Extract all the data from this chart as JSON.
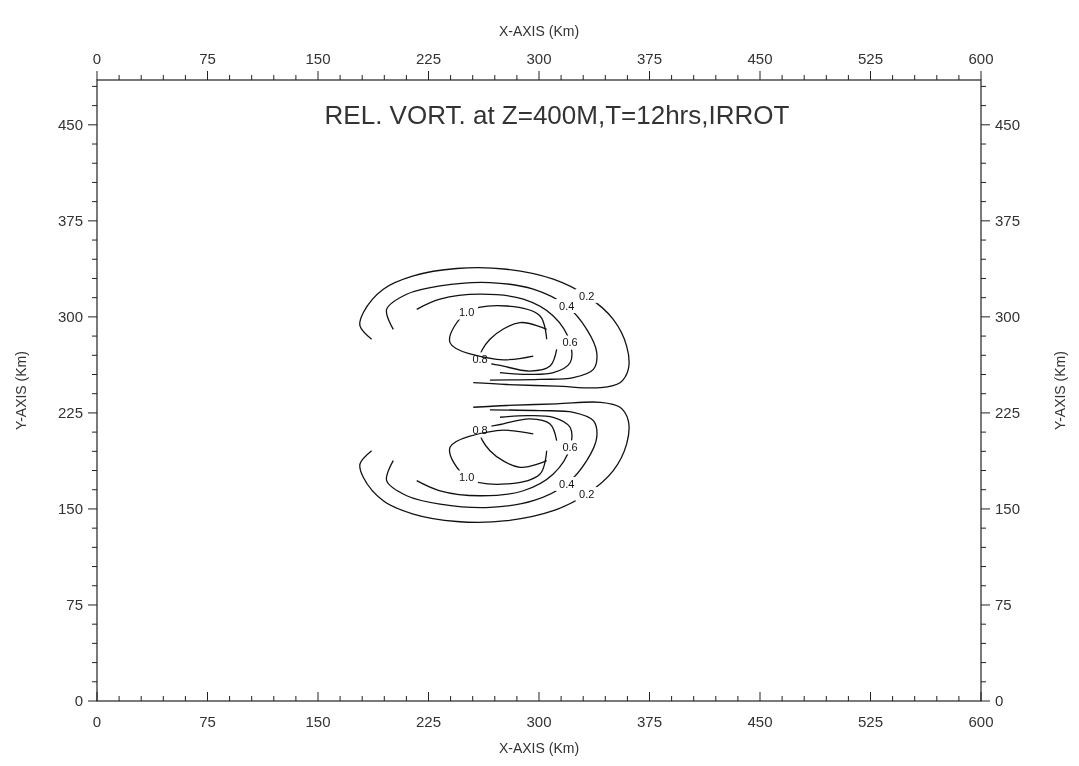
{
  "chart_data": {
    "type": "line",
    "title": "REL. VORT. at Z=400M,T=12hrs,IRROT",
    "xlabel": "X-AXIS (Km)",
    "x2label": "X-AXIS (Km)",
    "ylabel": "Y-AXIS (Km)",
    "y2label": "Y-AXIS (Km)",
    "xlim": [
      0,
      600
    ],
    "x2lim": [
      0,
      600
    ],
    "ylim": [
      0,
      485
    ],
    "y2lim": [
      0,
      485
    ],
    "xticks": [
      0,
      {
        "value": 15,
        "label": null
      },
      {
        "value": 30,
        "label": null
      },
      {
        "value": 45,
        "label": null
      },
      {
        "value": 60,
        "label": null
      },
      75,
      {
        "value": 90,
        "label": null
      },
      {
        "value": 105,
        "label": null
      },
      {
        "value": 120,
        "label": null
      },
      {
        "value": 135,
        "label": null
      },
      150,
      {
        "value": 165,
        "label": null
      },
      {
        "value": 180,
        "label": null
      },
      {
        "value": 195,
        "label": null
      },
      {
        "value": 210,
        "label": null
      },
      225,
      {
        "value": 240,
        "label": null
      },
      {
        "value": 255,
        "label": null
      },
      {
        "value": 270,
        "label": null
      },
      {
        "value": 285,
        "label": null
      },
      300,
      {
        "value": 315,
        "label": null
      },
      {
        "value": 330,
        "label": null
      },
      {
        "value": 345,
        "label": null
      },
      {
        "value": 360,
        "label": null
      },
      375,
      {
        "value": 390,
        "label": null
      },
      {
        "value": 405,
        "label": null
      },
      {
        "value": 420,
        "label": null
      },
      {
        "value": 435,
        "label": null
      },
      450,
      {
        "value": 465,
        "label": null
      },
      {
        "value": 480,
        "label": null
      },
      {
        "value": 495,
        "label": null
      },
      {
        "value": 510,
        "label": null
      },
      525,
      {
        "value": 540,
        "label": null
      },
      {
        "value": 555,
        "label": null
      },
      {
        "value": 570,
        "label": null
      },
      {
        "value": 585,
        "label": null
      },
      600
    ],
    "x2ticks": [
      0,
      {
        "value": 15,
        "label": null
      },
      {
        "value": 30,
        "label": null
      },
      {
        "value": 45,
        "label": null
      },
      {
        "value": 60,
        "label": null
      },
      75,
      {
        "value": 90,
        "label": null
      },
      {
        "value": 105,
        "label": null
      },
      {
        "value": 120,
        "label": null
      },
      {
        "value": 135,
        "label": null
      },
      150,
      {
        "value": 165,
        "label": null
      },
      {
        "value": 180,
        "label": null
      },
      {
        "value": 195,
        "label": null
      },
      {
        "value": 210,
        "label": null
      },
      225,
      {
        "value": 240,
        "label": null
      },
      {
        "value": 255,
        "label": null
      },
      {
        "value": 270,
        "label": null
      },
      {
        "value": 285,
        "label": null
      },
      300,
      {
        "value": 315,
        "label": null
      },
      {
        "value": 330,
        "label": null
      },
      {
        "value": 345,
        "label": null
      },
      {
        "value": 360,
        "label": null
      },
      375,
      {
        "value": 390,
        "label": null
      },
      {
        "value": 405,
        "label": null
      },
      {
        "value": 420,
        "label": null
      },
      {
        "value": 435,
        "label": null
      },
      450,
      {
        "value": 465,
        "label": null
      },
      {
        "value": 480,
        "label": null
      },
      {
        "value": 495,
        "label": null
      },
      {
        "value": 510,
        "label": null
      },
      525,
      {
        "value": 540,
        "label": null
      },
      {
        "value": 555,
        "label": null
      },
      {
        "value": 570,
        "label": null
      },
      {
        "value": 585,
        "label": null
      },
      600
    ],
    "yticks": [
      0,
      {
        "value": 15,
        "label": null
      },
      {
        "value": 30,
        "label": null
      },
      {
        "value": 45,
        "label": null
      },
      {
        "value": 60,
        "label": null
      },
      75,
      {
        "value": 90,
        "label": null
      },
      {
        "value": 105,
        "label": null
      },
      {
        "value": 120,
        "label": null
      },
      {
        "value": 135,
        "label": null
      },
      150,
      {
        "value": 165,
        "label": null
      },
      {
        "value": 180,
        "label": null
      },
      {
        "value": 195,
        "label": null
      },
      {
        "value": 210,
        "label": null
      },
      225,
      {
        "value": 240,
        "label": null
      },
      {
        "value": 255,
        "label": null
      },
      {
        "value": 270,
        "label": null
      },
      {
        "value": 285,
        "label": null
      },
      300,
      {
        "value": 315,
        "label": null
      },
      {
        "value": 330,
        "label": null
      },
      {
        "value": 345,
        "label": null
      },
      {
        "value": 360,
        "label": null
      },
      375,
      {
        "value": 390,
        "label": null
      },
      {
        "value": 405,
        "label": null
      },
      {
        "value": 420,
        "label": null
      },
      {
        "value": 435,
        "label": null
      },
      450,
      {
        "value": 465,
        "label": null
      },
      {
        "value": 480,
        "label": null
      }
    ],
    "y2ticks": [
      0,
      {
        "value": 15,
        "label": null
      },
      {
        "value": 30,
        "label": null
      },
      {
        "value": 45,
        "label": null
      },
      {
        "value": 60,
        "label": null
      },
      75,
      {
        "value": 90,
        "label": null
      },
      {
        "value": 105,
        "label": null
      },
      {
        "value": 120,
        "label": null
      },
      {
        "value": 135,
        "label": null
      },
      150,
      {
        "value": 165,
        "label": null
      },
      {
        "value": 180,
        "label": null
      },
      {
        "value": 195,
        "label": null
      },
      {
        "value": 210,
        "label": null
      },
      225,
      {
        "value": 240,
        "label": null
      },
      {
        "value": 255,
        "label": null
      },
      {
        "value": 270,
        "label": null
      },
      {
        "value": 285,
        "label": null
      },
      300,
      {
        "value": 315,
        "label": null
      },
      {
        "value": 330,
        "label": null
      },
      {
        "value": 345,
        "label": null
      },
      {
        "value": 360,
        "label": null
      },
      375,
      {
        "value": 390,
        "label": null
      },
      {
        "value": 405,
        "label": null
      },
      {
        "value": 420,
        "label": null
      },
      {
        "value": 435,
        "label": null
      },
      450,
      {
        "value": 465,
        "label": null
      },
      {
        "value": 480,
        "label": null
      }
    ],
    "series": [
      {
        "name": "0.2",
        "color": "#111111",
        "x": [
          186.4,
          178.5,
          180.8,
          194.3,
          214.7,
          244.1,
          278.1,
          309.7,
          332.4,
          350.4,
          359.5,
          360.6,
          355.0,
          341.4,
          312.0,
          278.1,
          255.4
        ],
        "values": [
          282.5,
          292.9,
          303.4,
          321.6,
          332.0,
          337.8,
          337.2,
          329.4,
          316.4,
          298.1,
          277.2,
          259.0,
          248.6,
          244.7,
          245.9,
          247.2,
          248.6
        ]
      },
      {
        "name": "0.2",
        "color": "#111111",
        "x": [
          186.4,
          178.5,
          180.8,
          194.3,
          214.7,
          244.1,
          278.1,
          309.7,
          332.4,
          350.4,
          359.5,
          360.6,
          355.0,
          341.4,
          312.0,
          278.1,
          255.4
        ],
        "values": [
          195.5,
          185.1,
          174.6,
          156.4,
          146.0,
          140.2,
          140.8,
          148.6,
          161.6,
          179.9,
          200.8,
          219.0,
          229.4,
          233.3,
          232.1,
          230.8,
          229.4
        ]
      },
      {
        "name": "0.4",
        "color": "#111111",
        "x": [
          201.1,
          196.6,
          210.2,
          232.8,
          266.7,
          296.1,
          318.8,
          332.4,
          339.2,
          336.9,
          323.3,
          300.7,
          266.7
        ],
        "values": [
          290.3,
          305.9,
          317.7,
          324.2,
          326.8,
          321.6,
          308.5,
          290.3,
          272.1,
          259.0,
          252.5,
          251.2,
          250.6
        ]
      },
      {
        "name": "0.4",
        "color": "#111111",
        "x": [
          201.1,
          196.6,
          210.2,
          232.8,
          266.7,
          296.1,
          318.8,
          332.4,
          339.2,
          336.9,
          323.3,
          300.7,
          266.7
        ],
        "values": [
          187.7,
          172.1,
          160.3,
          153.8,
          151.2,
          156.4,
          169.5,
          187.7,
          205.9,
          219.0,
          225.5,
          226.8,
          227.4
        ]
      },
      {
        "name": "0.6",
        "color": "#111111",
        "x": [
          217.0,
          232.8,
          260.0,
          289.4,
          309.7,
          321.1,
          321.1,
          309.7,
          291.7,
          273.5
        ],
        "values": [
          305.9,
          313.8,
          317.7,
          313.8,
          300.7,
          279.9,
          264.2,
          256.4,
          255.1,
          256.4
        ]
      },
      {
        "name": "0.6",
        "color": "#111111",
        "x": [
          217.0,
          232.8,
          260.0,
          289.4,
          309.7,
          321.1,
          321.1,
          309.7,
          291.7,
          273.5
        ],
        "values": [
          172.1,
          164.2,
          160.3,
          164.2,
          177.3,
          198.1,
          213.8,
          221.6,
          222.9,
          221.6
        ]
      },
      {
        "name": "0.8",
        "color": "#111111",
        "x": [
          312.0,
          307.5,
          293.9,
          275.8,
          260.0,
          266.7,
          287.1,
          305.2
        ],
        "values": [
          274.6,
          261.6,
          257.7,
          261.6,
          266.8,
          282.5,
          295.5,
          290.3
        ]
      },
      {
        "name": "0.8",
        "color": "#111111",
        "x": [
          312.0,
          307.5,
          293.9,
          275.8,
          260.0,
          266.7,
          287.1,
          305.2
        ],
        "values": [
          203.4,
          216.4,
          220.3,
          216.4,
          211.2,
          195.5,
          182.5,
          187.7
        ]
      },
      {
        "name": "1.0",
        "color": "#111111",
        "x": [
          296.1,
          271.3,
          239.6,
          250.9,
          278.1,
          300.7,
          305.2
        ],
        "values": [
          269.4,
          266.8,
          279.9,
          303.4,
          308.5,
          300.7,
          282.5
        ]
      },
      {
        "name": "1.0",
        "color": "#111111",
        "x": [
          296.1,
          271.3,
          239.6,
          250.9,
          278.1,
          300.7,
          305.2
        ],
        "values": [
          208.6,
          211.2,
          198.1,
          174.6,
          169.5,
          177.3,
          195.5
        ]
      }
    ]
  }
}
